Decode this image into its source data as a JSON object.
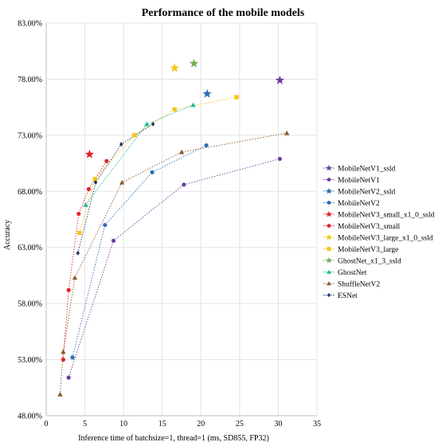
{
  "chart_data": {
    "type": "scatter",
    "title": "Performance of the mobile models",
    "xlabel": "Inference time of batchsize=1, thread=1 (ms, SD855, FP32)",
    "ylabel": "Accuracy",
    "xlim": [
      0,
      35
    ],
    "ylim": [
      48,
      83
    ],
    "xticks": [
      0,
      5,
      10,
      15,
      20,
      25,
      30,
      35
    ],
    "yticks": [
      "48.00%",
      "53.00%",
      "58.00%",
      "63.00%",
      "68.00%",
      "73.00%",
      "78.00%",
      "83.00%"
    ],
    "grid": true,
    "legend_position": "right",
    "series": [
      {
        "name": "MobileNetV1_ssld",
        "color": "#6a3fa0",
        "marker": "star",
        "connect": false,
        "points": [
          [
            30.2,
            77.9
          ]
        ]
      },
      {
        "name": "MobileNetV1",
        "color": "#6a3fa0",
        "marker": "circle",
        "connect": true,
        "points": [
          [
            2.9,
            51.4
          ],
          [
            8.7,
            63.6
          ],
          [
            17.8,
            68.6
          ],
          [
            30.2,
            70.9
          ]
        ]
      },
      {
        "name": "MobileNetV2_ssld",
        "color": "#2a6db5",
        "marker": "star",
        "connect": false,
        "points": [
          [
            20.8,
            76.7
          ]
        ]
      },
      {
        "name": "MobileNetV2",
        "color": "#2a6db5",
        "marker": "circle",
        "connect": true,
        "points": [
          [
            3.4,
            53.2
          ],
          [
            7.6,
            65.0
          ],
          [
            13.7,
            69.7
          ],
          [
            20.7,
            72.1
          ]
        ]
      },
      {
        "name": "MobileNetV3_small_x1_0_ssld",
        "color": "#e0242a",
        "marker": "star",
        "connect": false,
        "points": [
          [
            5.6,
            71.3
          ]
        ]
      },
      {
        "name": "MobileNetV3_small",
        "color": "#e0242a",
        "marker": "circle",
        "connect": true,
        "points": [
          [
            2.2,
            53.0
          ],
          [
            2.9,
            59.2
          ],
          [
            4.2,
            66.0
          ],
          [
            5.5,
            68.2
          ],
          [
            7.8,
            70.7
          ]
        ]
      },
      {
        "name": "MobileNetV3_large_x1_0_ssld",
        "color": "#f5c518",
        "marker": "star",
        "connect": false,
        "points": [
          [
            16.6,
            79.0
          ]
        ]
      },
      {
        "name": "MobileNetV3_large",
        "color": "#f5c518",
        "marker": "square",
        "connect": true,
        "points": [
          [
            4.3,
            64.3
          ],
          [
            6.3,
            69.1
          ],
          [
            11.4,
            73.0
          ],
          [
            16.6,
            75.3
          ],
          [
            24.6,
            76.4
          ]
        ]
      },
      {
        "name": "GhostNet_x1_3_ssld",
        "color": "#6fae55",
        "marker": "star",
        "connect": false,
        "points": [
          [
            19.1,
            79.4
          ]
        ]
      },
      {
        "name": "GhostNet",
        "color": "#1fb89a",
        "marker": "triangle",
        "connect": true,
        "points": [
          [
            5.1,
            66.8
          ],
          [
            13.0,
            74.0
          ],
          [
            19.0,
            75.7
          ]
        ]
      },
      {
        "name": "ShuffleNetV2",
        "color": "#8b5a2b",
        "marker": "triangle",
        "connect": true,
        "points": [
          [
            1.8,
            49.9
          ],
          [
            2.2,
            53.7
          ],
          [
            3.7,
            60.3
          ],
          [
            9.8,
            68.8
          ],
          [
            17.5,
            71.5
          ],
          [
            31.1,
            73.2
          ]
        ]
      },
      {
        "name": "ESNet",
        "color": "#1f3566",
        "marker": "diamond",
        "connect": true,
        "points": [
          [
            4.1,
            62.5
          ],
          [
            6.4,
            68.8
          ],
          [
            9.7,
            72.2
          ],
          [
            13.8,
            74.0
          ]
        ]
      }
    ]
  }
}
